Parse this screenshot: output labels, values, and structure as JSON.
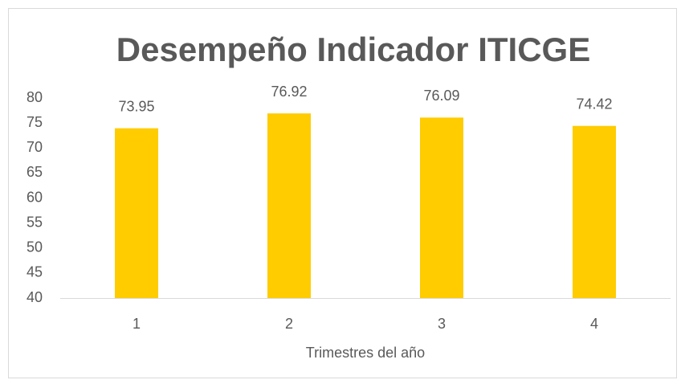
{
  "chart_data": {
    "type": "bar",
    "title": "Desempeño Indicador ITICGE",
    "x_label": "Trimestres del año",
    "categories": [
      "1",
      "2",
      "3",
      "4"
    ],
    "values": [
      73.95,
      76.92,
      76.09,
      74.42
    ],
    "color": "#ffcc00",
    "ylim": [
      40,
      80
    ],
    "yticks": [
      40,
      45,
      50,
      55,
      60,
      65,
      70,
      75,
      80
    ],
    "grid": false
  }
}
